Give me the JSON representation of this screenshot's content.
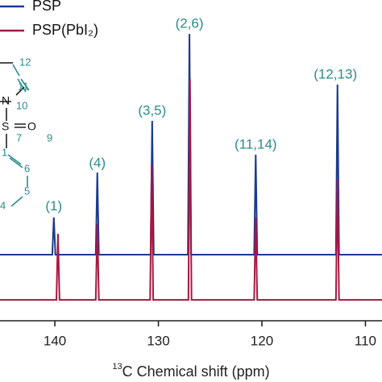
{
  "chart_data": {
    "type": "line",
    "xlabel_sup": "13",
    "xlabel": "C Chemical shift (ppm)",
    "xlim": [
      145.3,
      108.4
    ],
    "xticks": [
      140,
      130,
      120,
      110
    ],
    "ylim": [
      0,
      100
    ],
    "series": [
      {
        "name": "PSP",
        "color": "#1c3a8f",
        "x": [
          145.3,
          140.25,
          140.1,
          139.95,
          136.05,
          135.9,
          135.75,
          130.75,
          130.6,
          130.45,
          127.15,
          127.0,
          126.85,
          120.75,
          120.6,
          120.45,
          112.85,
          112.7,
          112.55,
          108.4
        ],
        "values": [
          20.6,
          20.6,
          32.2,
          20.6,
          20.6,
          46.2,
          20.6,
          20.6,
          62.3,
          20.6,
          20.6,
          89.4,
          20.6,
          20.6,
          51.8,
          20.6,
          20.6,
          73.6,
          20.6,
          20.6
        ]
      },
      {
        "name": "PSP(PbI₂)",
        "color": "#a8173f",
        "x": [
          145.3,
          139.85,
          139.7,
          139.55,
          136.05,
          135.9,
          135.75,
          130.8,
          130.65,
          130.5,
          127.1,
          126.95,
          126.8,
          120.75,
          120.6,
          120.45,
          112.85,
          112.7,
          112.55,
          108.4
        ],
        "values": [
          6.5,
          6.5,
          27.1,
          6.5,
          6.5,
          30.2,
          6.5,
          6.5,
          48.7,
          6.5,
          6.5,
          75.4,
          6.5,
          6.5,
          32.2,
          6.5,
          6.5,
          44.2,
          6.5,
          6.5
        ]
      }
    ],
    "annotations": [
      {
        "text": "(1)",
        "x": 140.1,
        "y": 35.5
      },
      {
        "text": "(4)",
        "x": 135.9,
        "y": 49
      },
      {
        "text": "(3,5)",
        "x": 130.6,
        "y": 65.3
      },
      {
        "text": "(2,6)",
        "x": 127.0,
        "y": 92.5
      },
      {
        "text": "(11,14)",
        "x": 120.6,
        "y": 54.8
      },
      {
        "text": "(12,13)",
        "x": 112.9,
        "y": 76.6
      }
    ]
  },
  "structure": {
    "labels": [
      "12",
      "11",
      "N",
      "10",
      "S",
      "O",
      "7",
      "9",
      "1",
      "6",
      "5",
      "4"
    ]
  }
}
